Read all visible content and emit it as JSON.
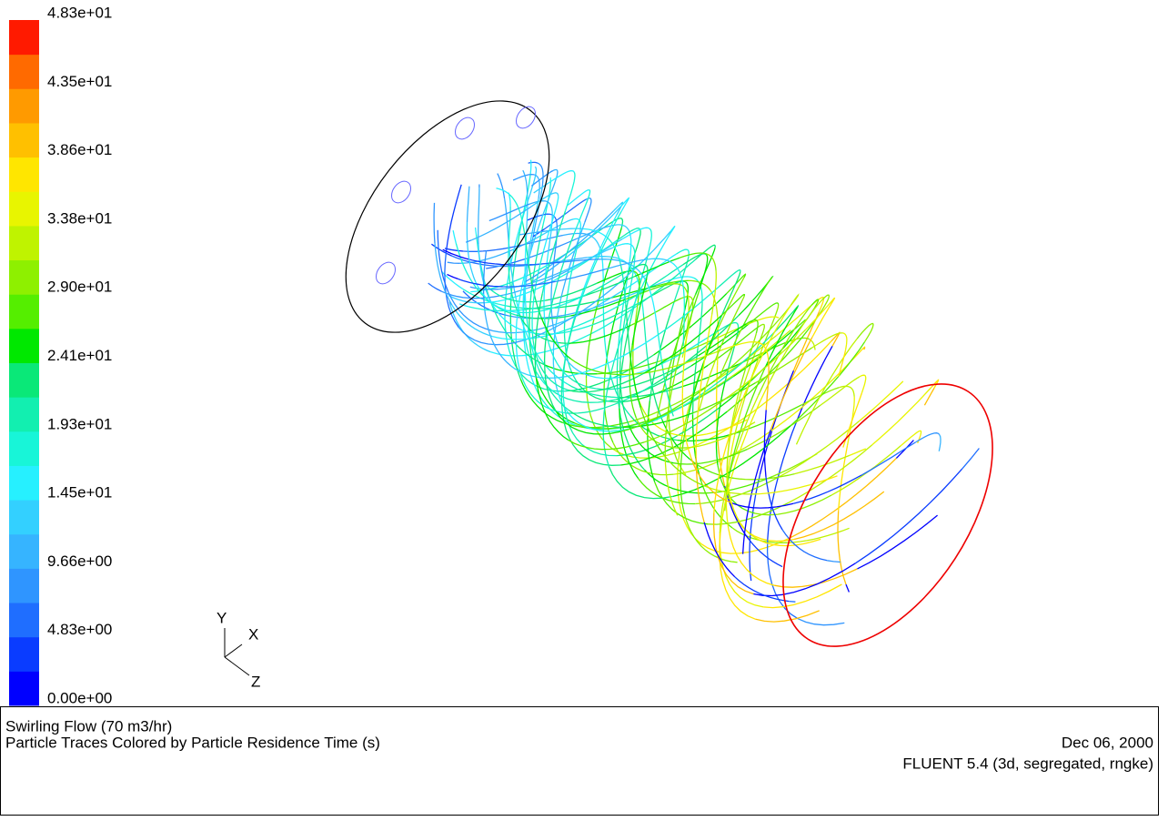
{
  "colormap": {
    "labels": [
      "4.83e+01",
      "4.35e+01",
      "3.86e+01",
      "3.38e+01",
      "2.90e+01",
      "2.41e+01",
      "1.93e+01",
      "1.45e+01",
      "9.66e+00",
      "4.83e+00",
      "0.00e+00"
    ]
  },
  "axes_triad": {
    "y": "Y",
    "x": "X",
    "z": "Z"
  },
  "footer": {
    "title": "Swirling Flow (70 m3/hr)",
    "subtitle": "Particle Traces Colored by Particle Residence Time (s)",
    "date": "Dec 06, 2000",
    "software": "FLUENT 5.4 (3d, segregated, rngke)"
  }
}
